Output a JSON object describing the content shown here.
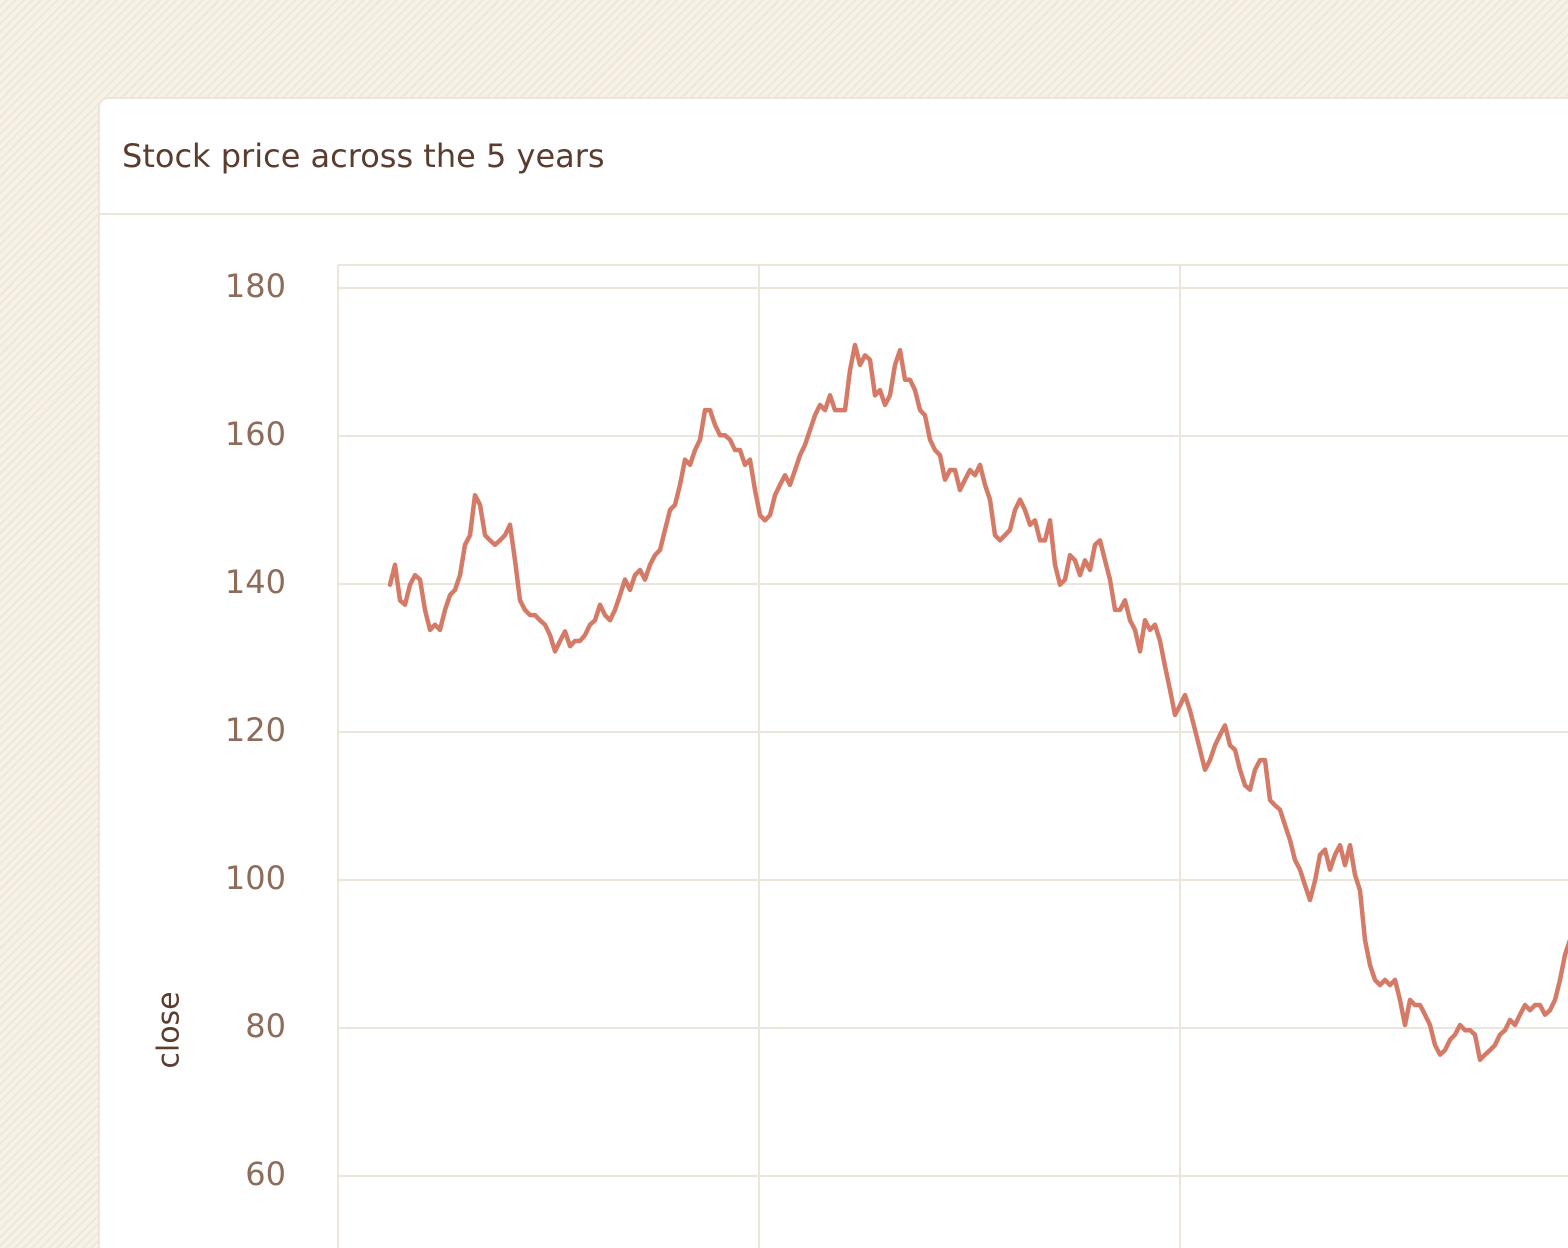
{
  "chart_data": {
    "type": "line",
    "title": "Stock price across the 5 years",
    "y_label": "close",
    "ylim": [
      60,
      180
    ],
    "yticks": [
      60,
      80,
      100,
      120,
      140,
      160,
      180
    ],
    "grid": true,
    "series": [
      {
        "name": "close",
        "color": "#d47a66",
        "values": [
          139.9,
          142.6,
          137.8,
          137.2,
          139.9,
          141.2,
          140.6,
          136.5,
          133.8,
          134.5,
          133.8,
          136.5,
          138.5,
          139.2,
          141.2,
          145.3,
          146.6,
          152.0,
          150.7,
          146.6,
          145.9,
          145.3,
          145.9,
          146.6,
          148.0,
          143.2,
          137.8,
          136.5,
          135.8,
          135.8,
          135.1,
          134.5,
          133.1,
          130.9,
          132.3,
          133.6,
          131.6,
          132.3,
          132.3,
          133.1,
          134.5,
          135.1,
          137.2,
          135.8,
          135.1,
          136.5,
          138.5,
          140.6,
          139.2,
          141.2,
          141.9,
          140.6,
          142.6,
          143.9,
          144.6,
          147.3,
          150.0,
          150.7,
          153.4,
          156.8,
          156.1,
          158.1,
          159.5,
          163.5,
          163.5,
          161.5,
          160.1,
          160.1,
          159.5,
          158.1,
          158.1,
          156.1,
          156.8,
          152.7,
          149.3,
          148.6,
          149.3,
          152.0,
          153.4,
          154.7,
          153.4,
          155.4,
          157.4,
          158.8,
          160.8,
          162.8,
          164.2,
          163.5,
          165.5,
          163.5,
          163.5,
          163.5,
          168.9,
          172.3,
          169.6,
          170.9,
          170.3,
          165.5,
          166.2,
          164.2,
          165.5,
          169.6,
          171.6,
          167.6,
          167.6,
          166.2,
          163.5,
          162.8,
          159.5,
          158.1,
          157.4,
          154.1,
          155.4,
          155.4,
          152.7,
          154.1,
          155.4,
          154.7,
          156.1,
          153.4,
          151.4,
          146.6,
          145.9,
          146.6,
          147.3,
          150.0,
          151.4,
          150.0,
          148.0,
          148.6,
          145.9,
          145.9,
          148.6,
          142.6,
          139.9,
          140.6,
          143.9,
          143.2,
          141.2,
          143.2,
          141.9,
          145.3,
          145.9,
          143.2,
          140.6,
          136.5,
          136.5,
          137.8,
          135.1,
          133.8,
          130.9,
          135.1,
          133.8,
          134.5,
          132.3,
          128.9,
          125.7,
          122.3,
          123.6,
          125.0,
          122.9,
          120.3,
          117.6,
          114.9,
          116.2,
          118.2,
          119.6,
          120.9,
          118.2,
          117.6,
          114.9,
          112.8,
          112.2,
          114.9,
          116.2,
          116.2,
          110.8,
          110.1,
          109.5,
          107.4,
          105.4,
          102.7,
          101.4,
          99.3,
          97.3,
          99.9,
          103.4,
          104.1,
          101.4,
          103.4,
          104.7,
          102.0,
          104.7,
          100.7,
          98.6,
          91.9,
          88.5,
          86.5,
          85.8,
          86.5,
          85.8,
          86.5,
          83.8,
          80.4,
          83.8,
          83.1,
          83.1,
          81.8,
          80.4,
          77.7,
          76.4,
          77.0,
          78.4,
          79.1,
          80.4,
          79.7,
          79.7,
          79.1,
          75.7,
          76.4,
          77.0,
          77.7,
          79.1,
          79.7,
          81.1,
          80.4,
          81.8,
          83.1,
          82.4,
          83.1,
          83.1,
          81.8,
          82.4,
          83.8,
          86.5,
          89.9,
          91.9
        ]
      }
    ]
  }
}
